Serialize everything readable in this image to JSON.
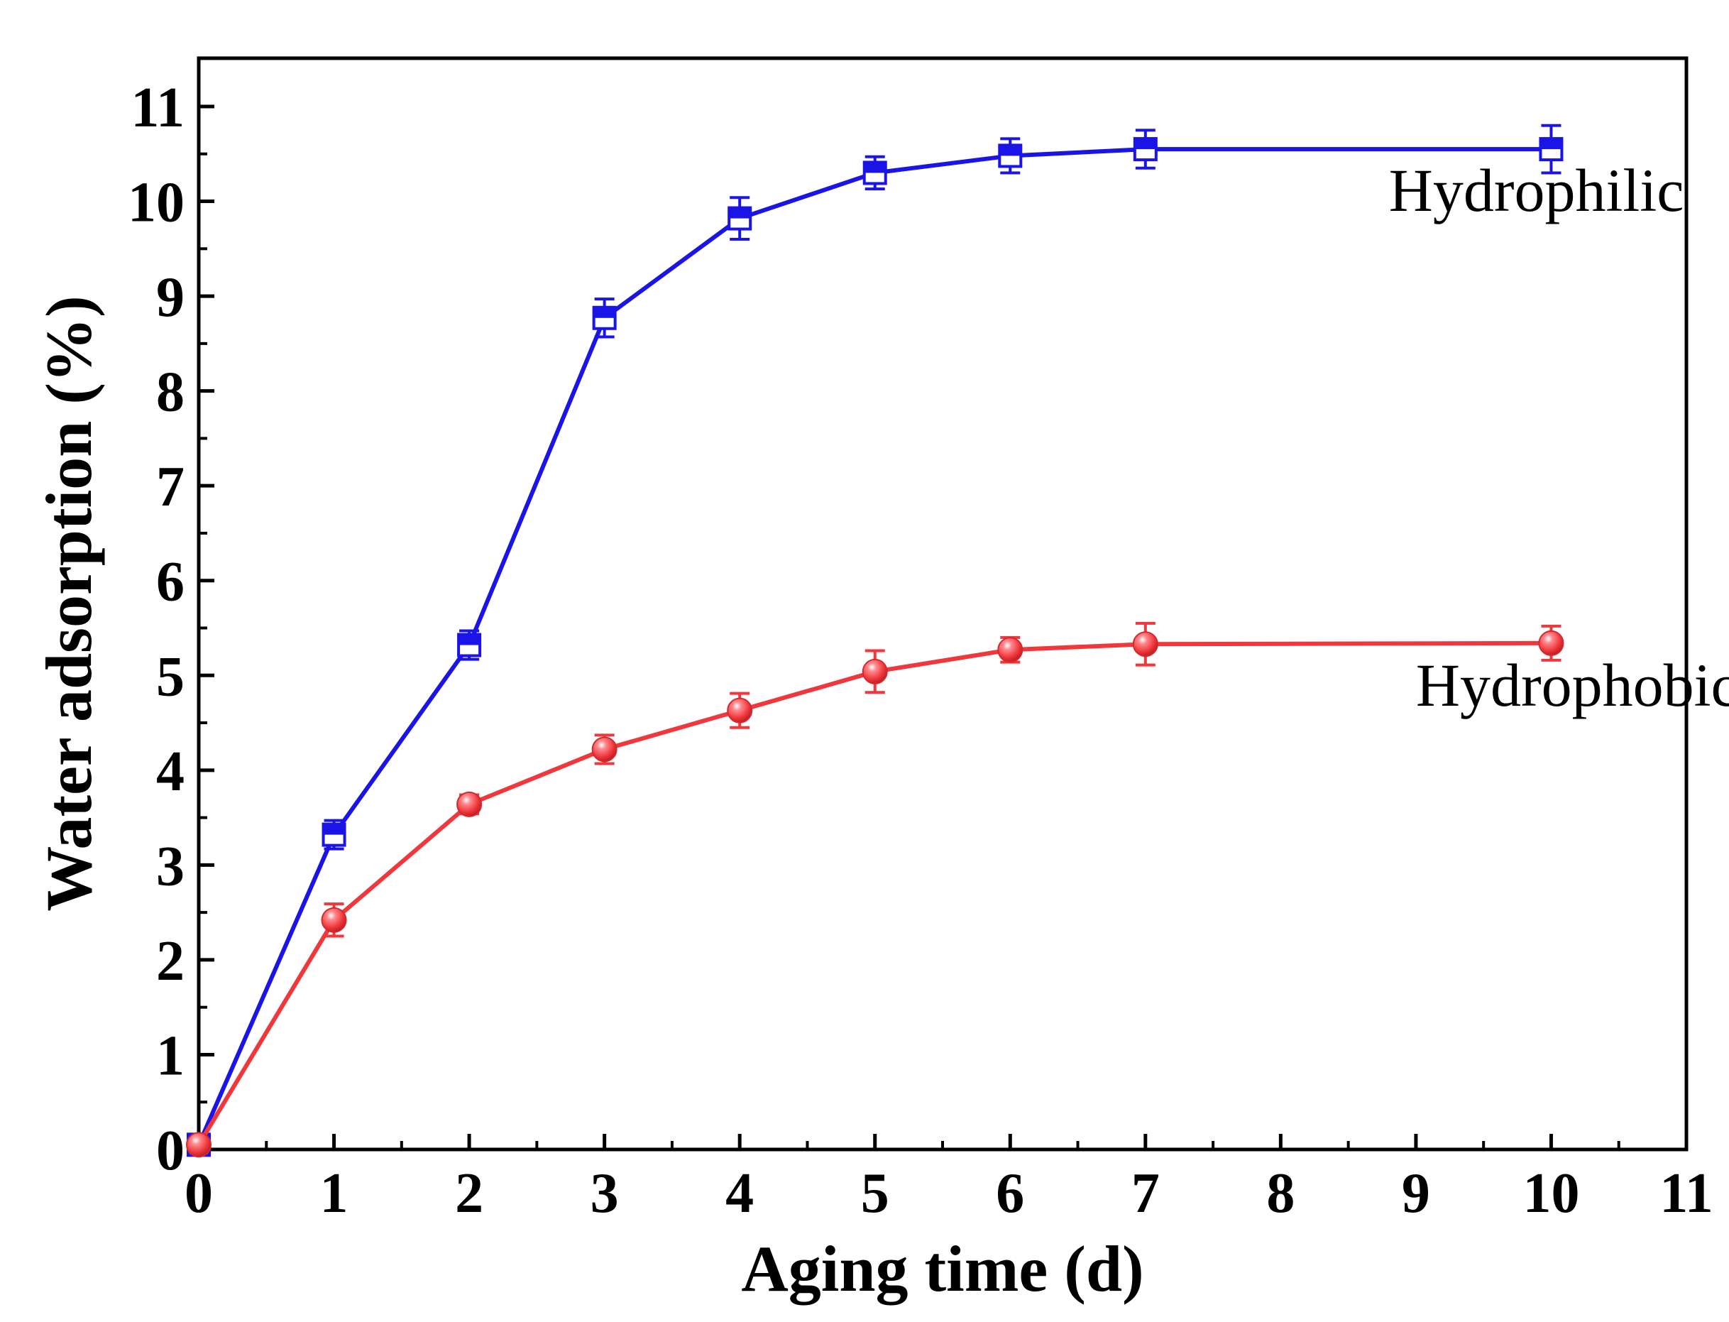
{
  "chart_data": {
    "type": "line",
    "title": "",
    "xlabel": "Aging time (d)",
    "ylabel": "Water adsorption (%)",
    "xlim": [
      0,
      11
    ],
    "ylim": [
      0,
      11.5
    ],
    "xticks": [
      0,
      1,
      2,
      3,
      4,
      5,
      6,
      7,
      8,
      9,
      10,
      11
    ],
    "xtick_labels": [
      "0",
      "1",
      "2",
      "3",
      "4",
      "5",
      "6",
      "7",
      "8",
      "9",
      "10",
      "11"
    ],
    "yticks": [
      0,
      1,
      2,
      3,
      4,
      5,
      6,
      7,
      8,
      9,
      10,
      11
    ],
    "ytick_labels": [
      "0",
      "1",
      "2",
      "3",
      "4",
      "5",
      "6",
      "7",
      "8",
      "9",
      "10",
      "11"
    ],
    "grid": false,
    "series": [
      {
        "name": "Hydrophilic",
        "color": "#1a14e6",
        "marker": "half-filled-square",
        "x": [
          0,
          1,
          2,
          3,
          4,
          5,
          6,
          7,
          10
        ],
        "values": [
          0.05,
          3.32,
          5.32,
          8.77,
          9.82,
          10.3,
          10.48,
          10.55,
          10.55
        ],
        "errors": [
          0.05,
          0.15,
          0.15,
          0.2,
          0.22,
          0.17,
          0.18,
          0.2,
          0.25
        ]
      },
      {
        "name": "Hydrophobic",
        "color": "#f0373c",
        "marker": "sphere",
        "x": [
          0,
          1,
          2,
          3,
          4,
          5,
          6,
          7,
          10
        ],
        "values": [
          0.05,
          2.42,
          3.64,
          4.22,
          4.63,
          5.04,
          5.27,
          5.33,
          5.34
        ],
        "errors": [
          0.05,
          0.17,
          0.1,
          0.15,
          0.18,
          0.22,
          0.13,
          0.22,
          0.18
        ]
      }
    ],
    "annotations": [
      {
        "text": "Hydrophilic",
        "x": 8.8,
        "y": 9.9
      },
      {
        "text": "Hydrophobic",
        "x": 9.0,
        "y": 4.68
      }
    ]
  }
}
